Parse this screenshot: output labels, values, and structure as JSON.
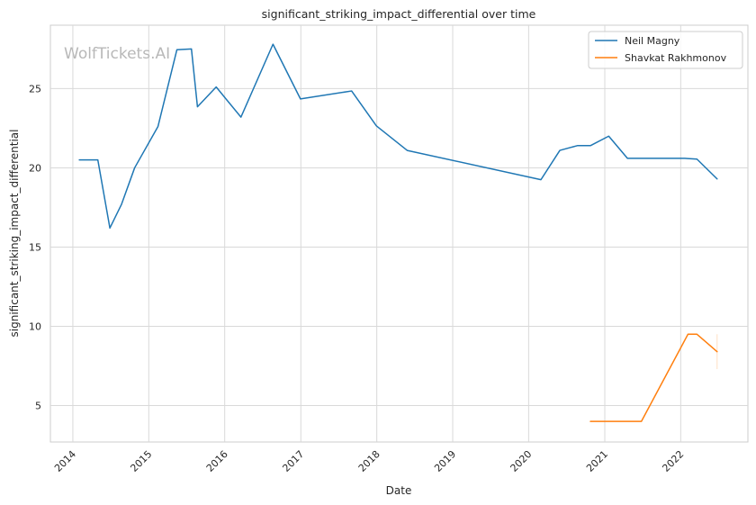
{
  "chart_data": {
    "type": "line",
    "title": "significant_striking_impact_differential over time",
    "xlabel": "Date",
    "ylabel": "significant_striking_impact_differential",
    "watermark": "WolfTickets.AI",
    "x_axis_type": "date",
    "xlim": [
      "2013-09-15",
      "2022-11-20"
    ],
    "ylim": [
      2.7,
      29.0
    ],
    "x_ticks": [
      "2014",
      "2015",
      "2016",
      "2017",
      "2018",
      "2019",
      "2020",
      "2021",
      "2022"
    ],
    "y_ticks": [
      5,
      10,
      15,
      20,
      25
    ],
    "grid": true,
    "legend_position": "top-right",
    "series": [
      {
        "name": "Neil Magny",
        "color": "#1f77b4",
        "points": [
          [
            "2014-02-01",
            20.5
          ],
          [
            "2014-05-01",
            20.5
          ],
          [
            "2014-06-28",
            16.2
          ],
          [
            "2014-08-23",
            17.7
          ],
          [
            "2014-10-25",
            20.0
          ],
          [
            "2015-02-14",
            22.6
          ],
          [
            "2015-05-16",
            27.45
          ],
          [
            "2015-07-25",
            27.5
          ],
          [
            "2015-08-23",
            23.85
          ],
          [
            "2015-11-21",
            25.1
          ],
          [
            "2016-03-19",
            23.2
          ],
          [
            "2016-08-20",
            27.8
          ],
          [
            "2016-12-30",
            24.35
          ],
          [
            "2017-09-02",
            24.85
          ],
          [
            "2017-12-30",
            22.65
          ],
          [
            "2018-05-27",
            21.1
          ],
          [
            "2020-02-29",
            19.25
          ],
          [
            "2020-05-30",
            21.1
          ],
          [
            "2020-08-22",
            21.4
          ],
          [
            "2020-10-24",
            21.4
          ],
          [
            "2021-01-20",
            22.0
          ],
          [
            "2021-04-20",
            20.6
          ],
          [
            "2022-01-20",
            20.6
          ],
          [
            "2022-03-20",
            20.55
          ],
          [
            "2022-06-25",
            19.3
          ]
        ]
      },
      {
        "name": "Shavkat Rakhmonov",
        "color": "#ff7f0e",
        "points": [
          [
            "2020-10-24",
            4.0
          ],
          [
            "2021-06-26",
            4.0
          ],
          [
            "2022-02-05",
            9.5
          ],
          [
            "2022-03-20",
            9.5
          ],
          [
            "2022-06-25",
            8.4
          ]
        ],
        "error_band": {
          "x": "2022-06-25",
          "low": 7.3,
          "high": 9.5
        }
      }
    ]
  }
}
